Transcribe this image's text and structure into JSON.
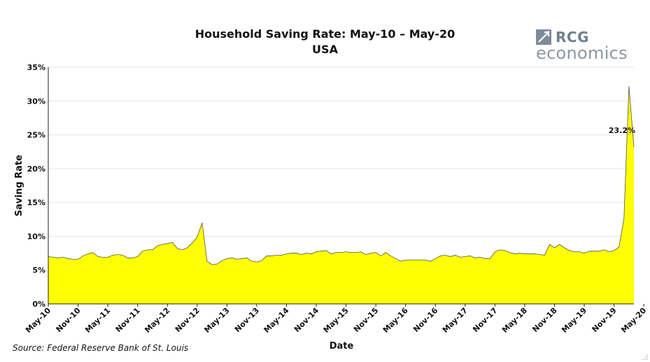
{
  "chart_data": {
    "type": "area",
    "title": "Household Saving Rate: May-10 – May-20",
    "subtitle": "USA",
    "xlabel": "Date",
    "ylabel": "Saving Rate",
    "ylim": [
      0,
      35
    ],
    "yticks": [
      "0%",
      "5%",
      "10%",
      "15%",
      "20%",
      "25%",
      "30%",
      "35%"
    ],
    "ytick_values": [
      0,
      5,
      10,
      15,
      20,
      25,
      30,
      35
    ],
    "xticks": [
      "May-10",
      "Nov-10",
      "May-11",
      "Nov-11",
      "May-12",
      "Nov-12",
      "May-13",
      "Nov-13",
      "May-14",
      "Nov-14",
      "May-15",
      "Nov-15",
      "May-16",
      "Nov-16",
      "May-17",
      "Nov-17",
      "May-18",
      "Nov-18",
      "May-19",
      "Nov-19",
      "May-20"
    ],
    "grid": "horizontal",
    "fill_color": "#ffff00",
    "line_color": "#555555",
    "series": [
      {
        "x_start": "May-10",
        "x_end": "May-20",
        "frequency": "monthly",
        "values": [
          7.0,
          6.9,
          6.8,
          6.9,
          6.7,
          6.6,
          6.6,
          7.1,
          7.4,
          7.6,
          7.0,
          6.9,
          6.9,
          7.2,
          7.3,
          7.2,
          6.8,
          6.8,
          7.0,
          7.8,
          8.0,
          8.0,
          8.6,
          8.8,
          8.9,
          9.1,
          8.2,
          8.0,
          8.3,
          9.0,
          9.9,
          12.0,
          6.3,
          5.8,
          5.9,
          6.4,
          6.7,
          6.8,
          6.6,
          6.7,
          6.8,
          6.3,
          6.2,
          6.4,
          7.1,
          7.1,
          7.2,
          7.2,
          7.4,
          7.5,
          7.5,
          7.3,
          7.5,
          7.4,
          7.7,
          7.8,
          7.9,
          7.4,
          7.6,
          7.6,
          7.7,
          7.6,
          7.6,
          7.7,
          7.3,
          7.5,
          7.6,
          7.1,
          7.6,
          7.1,
          6.7,
          6.3,
          6.5,
          6.5,
          6.5,
          6.5,
          6.5,
          6.3,
          6.7,
          7.1,
          7.2,
          7.0,
          7.2,
          6.9,
          7.0,
          7.1,
          6.8,
          6.9,
          6.7,
          6.7,
          7.7,
          8.0,
          7.9,
          7.6,
          7.4,
          7.5,
          7.4,
          7.4,
          7.4,
          7.3,
          7.2,
          8.8,
          8.3,
          8.8,
          8.3,
          7.9,
          7.7,
          7.7,
          7.5,
          7.8,
          7.8,
          7.8,
          8.0,
          7.7,
          7.9,
          8.4,
          12.7,
          32.2,
          23.2
        ]
      }
    ],
    "annotations": [
      {
        "text": "23.2%",
        "x": "May-20",
        "y": 23.2
      }
    ]
  },
  "logo": {
    "brand": "RCG",
    "sub": "economics"
  },
  "source": "Source: Federal Reserve Bank of St. Louis"
}
